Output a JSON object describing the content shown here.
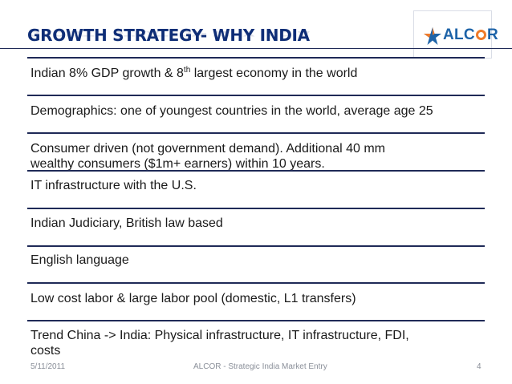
{
  "slide": {
    "title": "GROWTH STRATEGY- WHY INDIA",
    "logo": {
      "text_before": "ALC",
      "text_after": "R",
      "accent_colors": [
        "#1d63a8",
        "#f07b2a"
      ]
    },
    "bullets": [
      {
        "pre": "Indian 8% GDP growth & 8",
        "sup": "th",
        "post": " largest economy in the world"
      },
      {
        "text": "Demographics: one of youngest countries in the world, average age 25"
      },
      {
        "line1": "Consumer driven (not government demand). Additional 40 mm",
        "line2": "wealthy consumers ($1m+ earners) within 10 years."
      },
      {
        "text": "IT infrastructure with the U.S."
      },
      {
        "text": "Indian Judiciary, British law based"
      },
      {
        "text": "English language"
      },
      {
        "text": "Low cost labor & large labor pool (domestic, L1 transfers)"
      },
      {
        "line1": "Trend China -> India:  Physical infrastructure, IT infrastructure, FDI,",
        "line2": "costs"
      }
    ],
    "footer": {
      "date": "5/11/2011",
      "center": "ALCOR - Strategic India Market Entry",
      "page_number": "4"
    },
    "colors": {
      "title": "#0f2e77",
      "rules": "#1f2a57",
      "logo_blue": "#1d63a8",
      "logo_orange": "#f07b2a"
    }
  }
}
